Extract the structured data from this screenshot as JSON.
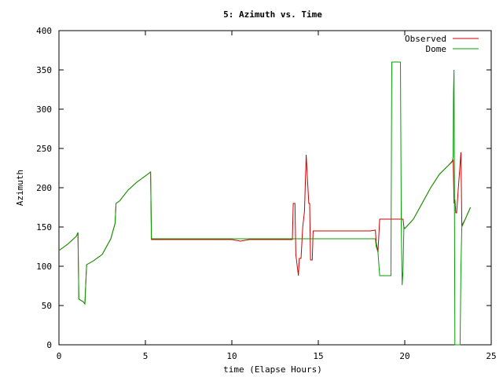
{
  "chart_data": {
    "type": "line",
    "title": "5: Azimuth vs. Time",
    "xlabel": "time (Elapse Hours)",
    "ylabel": "Azimuth",
    "xlim": [
      0,
      25
    ],
    "ylim": [
      0,
      400
    ],
    "xticks": [
      0,
      5,
      10,
      15,
      20,
      25
    ],
    "yticks": [
      0,
      50,
      100,
      150,
      200,
      250,
      300,
      350,
      400
    ],
    "grid": false,
    "legend_position": "top-right",
    "series": [
      {
        "name": "Observed",
        "color": "#cc0000",
        "points": [
          [
            0,
            120
          ],
          [
            0.5,
            128
          ],
          [
            1.0,
            138
          ],
          [
            1.1,
            143
          ],
          [
            1.15,
            58
          ],
          [
            1.4,
            55
          ],
          [
            1.5,
            52
          ],
          [
            1.6,
            102
          ],
          [
            2.0,
            107
          ],
          [
            2.5,
            115
          ],
          [
            3.0,
            135
          ],
          [
            3.25,
            155
          ],
          [
            3.3,
            180
          ],
          [
            3.5,
            183
          ],
          [
            4.0,
            197
          ],
          [
            4.5,
            207
          ],
          [
            5.0,
            215
          ],
          [
            5.3,
            220
          ],
          [
            5.35,
            134
          ],
          [
            7.0,
            134
          ],
          [
            9.0,
            134
          ],
          [
            10.0,
            134
          ],
          [
            10.5,
            132
          ],
          [
            11.0,
            134
          ],
          [
            12.0,
            134
          ],
          [
            13.0,
            134
          ],
          [
            13.5,
            134
          ],
          [
            13.55,
            180
          ],
          [
            13.65,
            180
          ],
          [
            13.7,
            115
          ],
          [
            13.85,
            88
          ],
          [
            13.9,
            110
          ],
          [
            14.0,
            110
          ],
          [
            14.1,
            150
          ],
          [
            14.2,
            170
          ],
          [
            14.3,
            242
          ],
          [
            14.35,
            220
          ],
          [
            14.45,
            180
          ],
          [
            14.5,
            180
          ],
          [
            14.55,
            108
          ],
          [
            14.65,
            108
          ],
          [
            14.7,
            145
          ],
          [
            15.0,
            145
          ],
          [
            16.0,
            145
          ],
          [
            17.0,
            145
          ],
          [
            18.0,
            145
          ],
          [
            18.3,
            146
          ],
          [
            18.35,
            130
          ],
          [
            18.45,
            118
          ],
          [
            18.55,
            160
          ],
          [
            19.0,
            160
          ],
          [
            19.5,
            160
          ],
          [
            19.9,
            160
          ],
          [
            19.95,
            150
          ],
          [
            20.0,
            148
          ],
          [
            20.5,
            160
          ],
          [
            21.0,
            180
          ],
          [
            21.5,
            200
          ],
          [
            22.0,
            217
          ],
          [
            22.5,
            228
          ],
          [
            22.8,
            235
          ],
          [
            22.85,
            180
          ],
          [
            22.9,
            185
          ],
          [
            22.95,
            168
          ],
          [
            23.0,
            168
          ],
          [
            23.1,
            200
          ],
          [
            23.2,
            230
          ],
          [
            23.25,
            245
          ],
          [
            23.3,
            152
          ],
          [
            23.5,
            160
          ],
          [
            23.8,
            175
          ]
        ]
      },
      {
        "name": "Dome",
        "color": "#00a000",
        "points": [
          [
            0,
            120
          ],
          [
            0.5,
            128
          ],
          [
            1.0,
            138
          ],
          [
            1.1,
            143
          ],
          [
            1.15,
            58
          ],
          [
            1.4,
            55
          ],
          [
            1.5,
            52
          ],
          [
            1.6,
            102
          ],
          [
            2.0,
            107
          ],
          [
            2.5,
            115
          ],
          [
            3.0,
            135
          ],
          [
            3.25,
            155
          ],
          [
            3.3,
            180
          ],
          [
            3.5,
            183
          ],
          [
            4.0,
            197
          ],
          [
            4.5,
            207
          ],
          [
            5.0,
            215
          ],
          [
            5.3,
            220
          ],
          [
            5.35,
            135
          ],
          [
            10.0,
            135
          ],
          [
            13.5,
            135
          ],
          [
            18.0,
            135
          ],
          [
            18.3,
            135
          ],
          [
            18.35,
            125
          ],
          [
            18.45,
            118
          ],
          [
            18.55,
            88
          ],
          [
            19.2,
            88
          ],
          [
            19.25,
            360
          ],
          [
            19.75,
            360
          ],
          [
            19.8,
            150
          ],
          [
            19.85,
            76
          ],
          [
            19.9,
            95
          ],
          [
            19.95,
            150
          ],
          [
            20.0,
            148
          ],
          [
            20.5,
            160
          ],
          [
            21.0,
            180
          ],
          [
            21.5,
            200
          ],
          [
            22.0,
            217
          ],
          [
            22.5,
            228
          ],
          [
            22.75,
            233
          ],
          [
            22.8,
            240
          ],
          [
            22.82,
            320
          ],
          [
            22.85,
            350
          ],
          [
            22.9,
            0
          ],
          [
            23.2,
            0
          ],
          [
            23.25,
            100
          ],
          [
            23.3,
            150
          ],
          [
            23.5,
            160
          ],
          [
            23.8,
            175
          ]
        ]
      }
    ]
  }
}
